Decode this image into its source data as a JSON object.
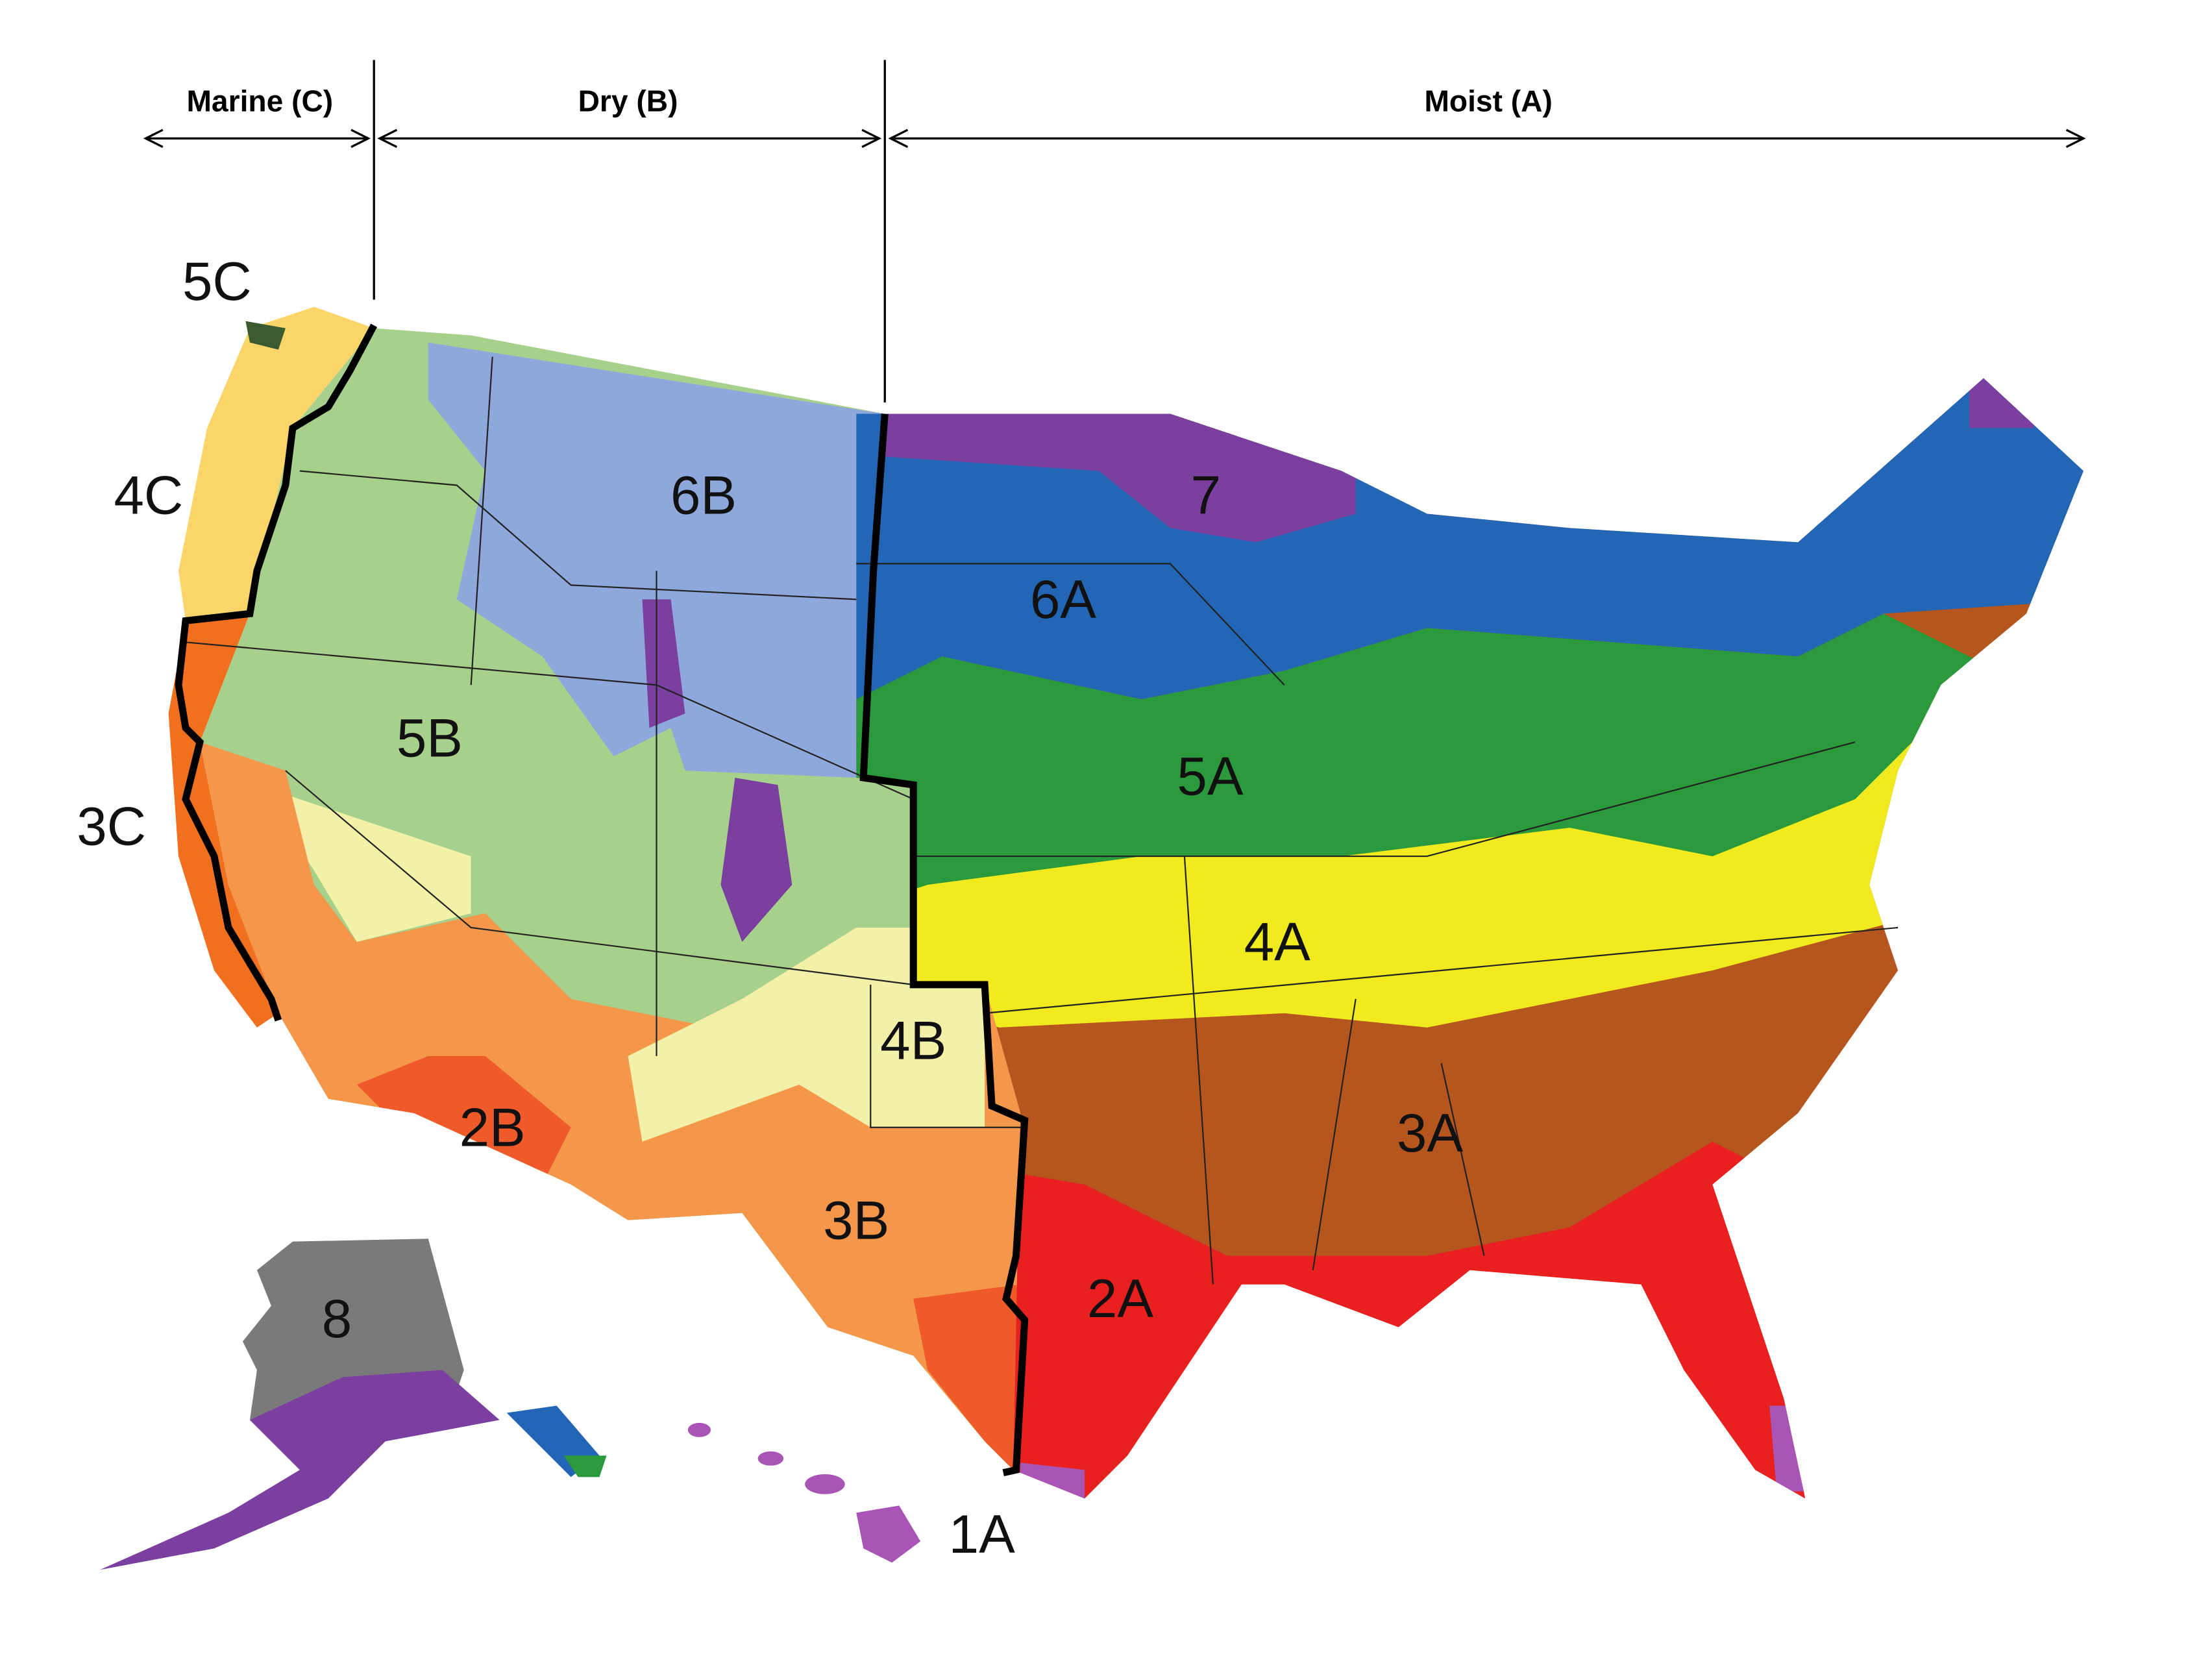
{
  "moisture_regimes": [
    {
      "label": "Marine (C)"
    },
    {
      "label": "Dry (B)"
    },
    {
      "label": "Moist (A)"
    }
  ],
  "zones": [
    {
      "label": "5C"
    },
    {
      "label": "4C"
    },
    {
      "label": "3C"
    },
    {
      "label": "6B"
    },
    {
      "label": "5B"
    },
    {
      "label": "4B"
    },
    {
      "label": "3B"
    },
    {
      "label": "2B"
    },
    {
      "label": "7"
    },
    {
      "label": "6A"
    },
    {
      "label": "5A"
    },
    {
      "label": "4A"
    },
    {
      "label": "3A"
    },
    {
      "label": "2A"
    },
    {
      "label": "1A"
    },
    {
      "label": "8"
    }
  ]
}
